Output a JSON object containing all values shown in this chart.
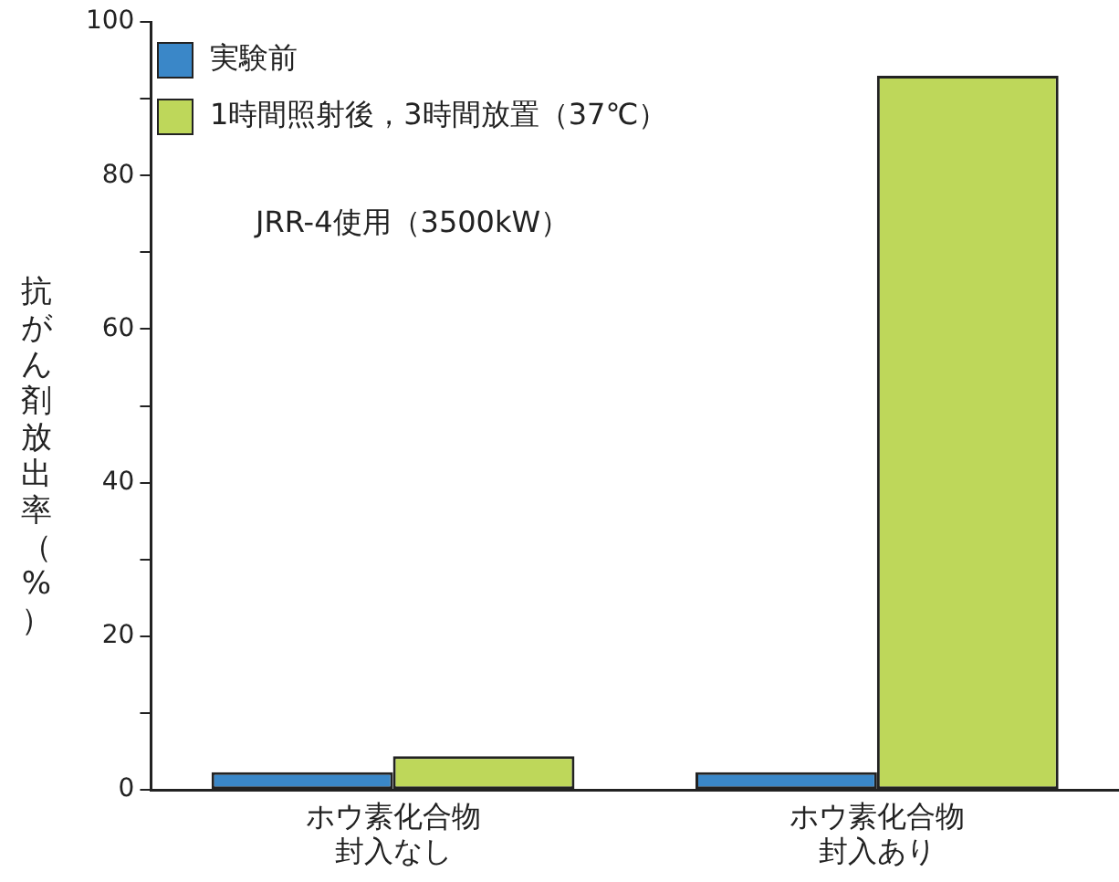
{
  "chart_data": {
    "type": "bar",
    "ylabel": "抗がん剤放出率（%）",
    "categories": [
      "ホウ素化合物封入なし",
      "ホウ素化合物封入あり"
    ],
    "series": [
      {
        "name": "実験前",
        "color": "#3a87c8",
        "values": [
          2.3,
          2.3
        ]
      },
      {
        "name": "1時間照射後，3時間放置（37℃）",
        "color": "#bed75a",
        "values": [
          4.4,
          93
        ]
      }
    ],
    "ylim": [
      0,
      100
    ],
    "yticks": [
      0,
      {
        "value": 10,
        "label": null
      },
      20,
      {
        "value": 30,
        "label": null
      },
      40,
      {
        "value": 50,
        "label": null
      },
      60,
      {
        "value": 70,
        "label": null
      },
      80,
      {
        "value": 90,
        "label": null
      },
      100
    ],
    "grid": false,
    "legend": "top left",
    "annotations": [
      "JRR-4使用（3500kW）"
    ]
  }
}
